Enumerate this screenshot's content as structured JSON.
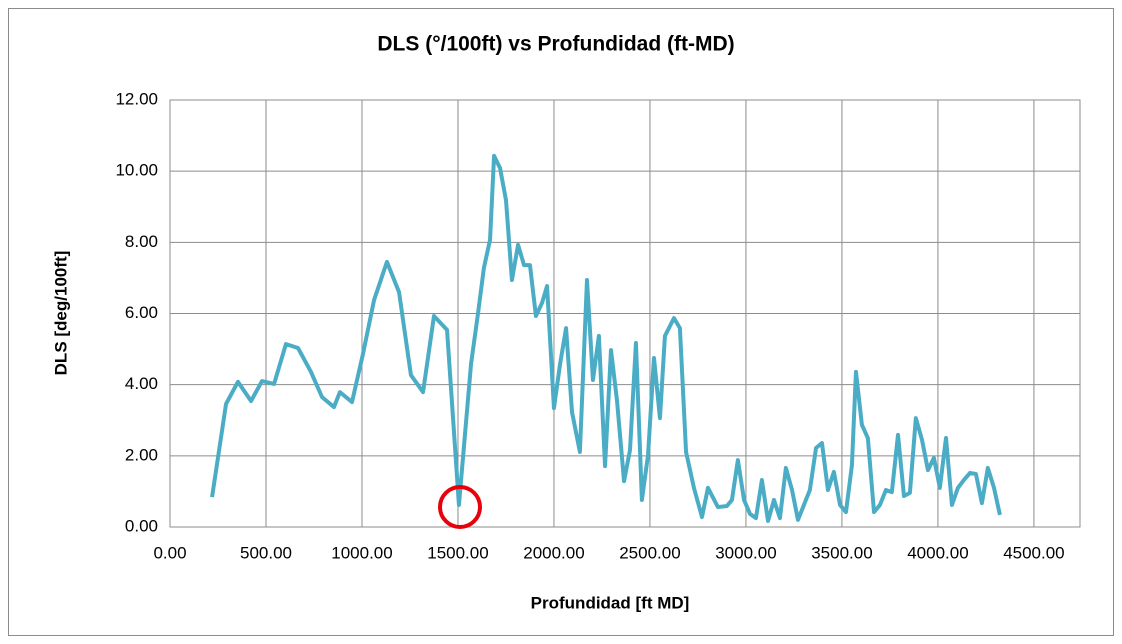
{
  "chart_data": {
    "type": "line",
    "title": "DLS (°/100ft) vs Profundidad (ft-MD)",
    "x_label": "Profundidad [ft MD]",
    "y_label": "DLS [deg/100ft]",
    "color": "#4bacc6",
    "grid": true,
    "xlim": [
      0,
      4740
    ],
    "ylim": [
      0,
      12
    ],
    "xticks": [
      {
        "value": 0,
        "label": "0.00"
      },
      {
        "value": 500,
        "label": "500.00"
      },
      {
        "value": 1000,
        "label": "1000.00"
      },
      {
        "value": 1500,
        "label": "1500.00"
      },
      {
        "value": 2000,
        "label": "2000.00"
      },
      {
        "value": 2500,
        "label": "2500.00"
      },
      {
        "value": 3000,
        "label": "3000.00"
      },
      {
        "value": 3500,
        "label": "3500.00"
      },
      {
        "value": 4000,
        "label": "4000.00"
      },
      {
        "value": 4500,
        "label": "4500.00"
      }
    ],
    "yticks": [
      {
        "value": 0,
        "label": "0.00"
      },
      {
        "value": 2,
        "label": "2.00"
      },
      {
        "value": 4,
        "label": "4.00"
      },
      {
        "value": 6,
        "label": "6.00"
      },
      {
        "value": 8,
        "label": "8.00"
      },
      {
        "value": 10,
        "label": "10.00"
      },
      {
        "value": 12,
        "label": "12.00"
      }
    ],
    "x": [
      219,
      292,
      354,
      422,
      479,
      542,
      604,
      667,
      734,
      792,
      854,
      885,
      948,
      1005,
      1063,
      1130,
      1193,
      1255,
      1318,
      1375,
      1443,
      1505,
      1568,
      1604,
      1635,
      1667,
      1688,
      1719,
      1750,
      1781,
      1813,
      1844,
      1875,
      1906,
      1938,
      1964,
      2000,
      2031,
      2063,
      2094,
      2135,
      2172,
      2203,
      2234,
      2266,
      2297,
      2328,
      2365,
      2396,
      2427,
      2458,
      2490,
      2521,
      2552,
      2578,
      2625,
      2656,
      2688,
      2729,
      2771,
      2802,
      2854,
      2901,
      2927,
      2958,
      2990,
      3021,
      3052,
      3083,
      3115,
      3146,
      3177,
      3208,
      3240,
      3271,
      3333,
      3365,
      3396,
      3427,
      3458,
      3490,
      3521,
      3552,
      3573,
      3604,
      3635,
      3667,
      3698,
      3729,
      3760,
      3792,
      3823,
      3854,
      3885,
      3917,
      3948,
      3979,
      4010,
      4042,
      4073,
      4104,
      4135,
      4167,
      4198,
      4229,
      4260,
      4292,
      4323
    ],
    "values": [
      0.84,
      3.46,
      4.08,
      3.54,
      4.1,
      4.02,
      5.14,
      5.03,
      4.36,
      3.65,
      3.37,
      3.79,
      3.51,
      4.86,
      6.38,
      7.45,
      6.6,
      4.27,
      3.79,
      5.93,
      5.54,
      0.62,
      4.58,
      5.99,
      7.28,
      8.07,
      10.43,
      10.09,
      9.19,
      6.94,
      7.93,
      7.36,
      7.36,
      5.93,
      6.3,
      6.77,
      3.34,
      4.55,
      5.59,
      3.23,
      2.11,
      6.94,
      4.13,
      5.37,
      1.71,
      4.97,
      3.57,
      1.29,
      2.16,
      5.17,
      0.76,
      2.02,
      4.75,
      3.06,
      5.37,
      5.87,
      5.59,
      2.11,
      1.1,
      0.28,
      1.1,
      0.56,
      0.59,
      0.76,
      1.88,
      0.76,
      0.37,
      0.25,
      1.32,
      0.17,
      0.76,
      0.25,
      1.66,
      1.04,
      0.2,
      1.04,
      2.22,
      2.36,
      1.04,
      1.55,
      0.62,
      0.42,
      1.74,
      4.36,
      2.87,
      2.5,
      0.42,
      0.62,
      1.04,
      0.98,
      2.59,
      0.87,
      0.96,
      3.06,
      2.45,
      1.6,
      1.94,
      1.1,
      2.5,
      0.62,
      1.1,
      1.32,
      1.52,
      1.49,
      0.67,
      1.66,
      1.1,
      0.34
    ]
  }
}
